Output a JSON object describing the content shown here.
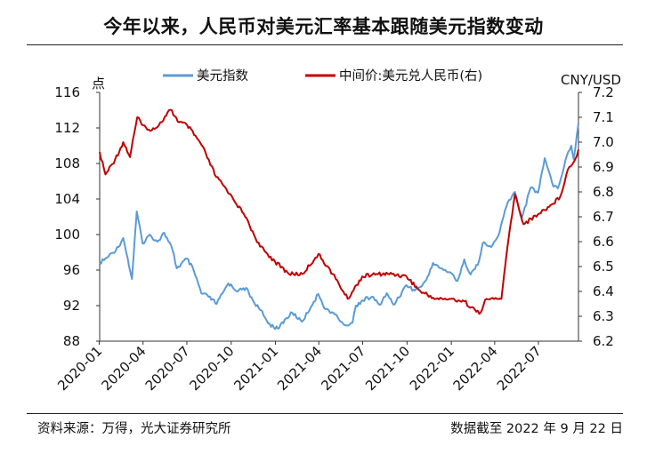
{
  "header": {
    "title": "今年以来，人民币对美元汇率基本跟随美元指数变动"
  },
  "footer": {
    "source": "资料来源：万得，光大证券研究所",
    "cutoff": "数据截至 2022 年 9 月 22 日"
  },
  "chart_data": {
    "type": "line",
    "title": "今年以来，人民币对美元汇率基本跟随美元指数变动",
    "ylabel_left": "点",
    "ylabel_right": "CNY/USD",
    "x_range": [
      "2020-01-02",
      "2022-09-22"
    ],
    "x_ticks": [
      "2020-01",
      "2020-04",
      "2020-07",
      "2020-10",
      "2021-01",
      "2021-04",
      "2021-07",
      "2021-10",
      "2022-01",
      "2022-04",
      "2022-07"
    ],
    "ylim_left": [
      88,
      116
    ],
    "yticks_left": [
      "88",
      "92",
      "96",
      "100",
      "104",
      "108",
      "112",
      "116"
    ],
    "ylim_right": [
      6.2,
      7.2
    ],
    "yticks_right": [
      "6.2",
      "6.3",
      "6.4",
      "6.5",
      "6.6",
      "6.7",
      "6.8",
      "6.9",
      "7.0",
      "7.1",
      "7.2"
    ],
    "legend_position": "top",
    "grid": false,
    "series": [
      {
        "name": "美元指数",
        "axis": "left",
        "color": "#5B9BD5",
        "points": [
          [
            "2020-01-02",
            96.8
          ],
          [
            "2020-01-20",
            97.5
          ],
          [
            "2020-02-10",
            98.6
          ],
          [
            "2020-02-20",
            99.6
          ],
          [
            "2020-03-09",
            95.0
          ],
          [
            "2020-03-19",
            102.6
          ],
          [
            "2020-03-31",
            99.0
          ],
          [
            "2020-04-15",
            100.0
          ],
          [
            "2020-05-01",
            99.2
          ],
          [
            "2020-05-15",
            100.2
          ],
          [
            "2020-06-01",
            98.3
          ],
          [
            "2020-06-10",
            96.2
          ],
          [
            "2020-07-01",
            97.3
          ],
          [
            "2020-07-15",
            96.0
          ],
          [
            "2020-07-31",
            93.4
          ],
          [
            "2020-08-15",
            93.0
          ],
          [
            "2020-09-01",
            92.2
          ],
          [
            "2020-09-25",
            94.5
          ],
          [
            "2020-10-15",
            93.6
          ],
          [
            "2020-11-01",
            94.0
          ],
          [
            "2020-11-15",
            92.6
          ],
          [
            "2020-12-01",
            91.5
          ],
          [
            "2020-12-17",
            90.0
          ],
          [
            "2021-01-06",
            89.4
          ],
          [
            "2021-01-20",
            90.4
          ],
          [
            "2021-02-05",
            91.2
          ],
          [
            "2021-02-25",
            90.2
          ],
          [
            "2021-03-15",
            91.8
          ],
          [
            "2021-03-31",
            93.3
          ],
          [
            "2021-04-15",
            91.6
          ],
          [
            "2021-05-01",
            91.2
          ],
          [
            "2021-05-25",
            89.8
          ],
          [
            "2021-06-10",
            90.1
          ],
          [
            "2021-06-17",
            92.0
          ],
          [
            "2021-07-01",
            92.6
          ],
          [
            "2021-07-20",
            93.0
          ],
          [
            "2021-08-05",
            92.1
          ],
          [
            "2021-08-20",
            93.4
          ],
          [
            "2021-09-03",
            92.1
          ],
          [
            "2021-09-30",
            94.3
          ],
          [
            "2021-10-15",
            93.8
          ],
          [
            "2021-10-29",
            94.1
          ],
          [
            "2021-11-10",
            94.9
          ],
          [
            "2021-11-24",
            96.8
          ],
          [
            "2021-12-10",
            96.2
          ],
          [
            "2021-12-31",
            95.7
          ],
          [
            "2022-01-14",
            94.8
          ],
          [
            "2022-01-28",
            97.2
          ],
          [
            "2022-02-10",
            95.5
          ],
          [
            "2022-02-25",
            96.6
          ],
          [
            "2022-03-07",
            99.0
          ],
          [
            "2022-03-25",
            98.6
          ],
          [
            "2022-04-08",
            99.8
          ],
          [
            "2022-04-28",
            103.6
          ],
          [
            "2022-05-13",
            104.8
          ],
          [
            "2022-05-27",
            101.8
          ],
          [
            "2022-06-15",
            105.3
          ],
          [
            "2022-06-30",
            104.7
          ],
          [
            "2022-07-14",
            108.6
          ],
          [
            "2022-08-01",
            105.4
          ],
          [
            "2022-08-10",
            105.2
          ],
          [
            "2022-08-29",
            108.9
          ],
          [
            "2022-09-07",
            110.0
          ],
          [
            "2022-09-12",
            108.5
          ],
          [
            "2022-09-22",
            112.5
          ]
        ]
      },
      {
        "name": "中间价:美元兑人民币(右)",
        "axis": "right",
        "color": "#C00000",
        "points": [
          [
            "2020-01-02",
            6.96
          ],
          [
            "2020-01-14",
            6.87
          ],
          [
            "2020-02-03",
            6.93
          ],
          [
            "2020-02-20",
            7.0
          ],
          [
            "2020-03-05",
            6.94
          ],
          [
            "2020-03-20",
            7.1
          ],
          [
            "2020-04-10",
            7.05
          ],
          [
            "2020-05-01",
            7.06
          ],
          [
            "2020-05-28",
            7.13
          ],
          [
            "2020-06-15",
            7.08
          ],
          [
            "2020-07-01",
            7.07
          ],
          [
            "2020-07-31",
            6.99
          ],
          [
            "2020-08-31",
            6.86
          ],
          [
            "2020-09-30",
            6.79
          ],
          [
            "2020-10-30",
            6.7
          ],
          [
            "2020-11-30",
            6.58
          ],
          [
            "2020-12-31",
            6.52
          ],
          [
            "2021-01-29",
            6.47
          ],
          [
            "2021-02-26",
            6.47
          ],
          [
            "2021-03-31",
            6.55
          ],
          [
            "2021-04-30",
            6.47
          ],
          [
            "2021-05-31",
            6.37
          ],
          [
            "2021-06-30",
            6.46
          ],
          [
            "2021-07-30",
            6.47
          ],
          [
            "2021-08-31",
            6.47
          ],
          [
            "2021-09-30",
            6.46
          ],
          [
            "2021-10-29",
            6.4
          ],
          [
            "2021-11-30",
            6.37
          ],
          [
            "2021-12-31",
            6.37
          ],
          [
            "2022-01-28",
            6.36
          ],
          [
            "2022-02-28",
            6.31
          ],
          [
            "2022-03-15",
            6.37
          ],
          [
            "2022-04-15",
            6.37
          ],
          [
            "2022-04-29",
            6.6
          ],
          [
            "2022-05-13",
            6.79
          ],
          [
            "2022-05-31",
            6.67
          ],
          [
            "2022-06-30",
            6.71
          ],
          [
            "2022-07-29",
            6.75
          ],
          [
            "2022-08-15",
            6.78
          ],
          [
            "2022-08-31",
            6.89
          ],
          [
            "2022-09-15",
            6.93
          ],
          [
            "2022-09-22",
            6.97
          ]
        ]
      }
    ]
  }
}
